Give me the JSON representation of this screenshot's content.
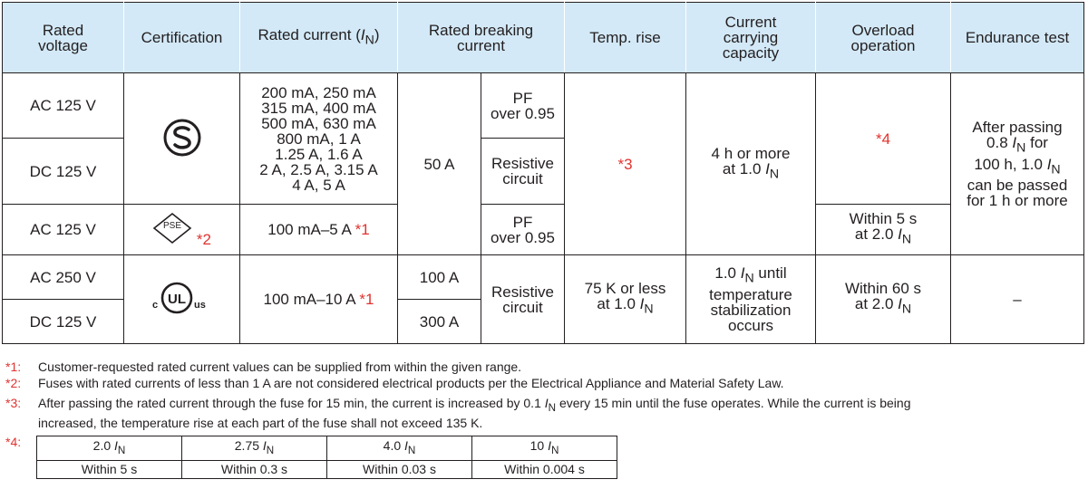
{
  "header": {
    "rated_voltage": "Rated\nvoltage",
    "certification": "Certification",
    "rated_current_prefix": "Rated current (",
    "rated_current_sym": "I",
    "rated_current_sub": "N",
    "rated_current_suffix": ")",
    "rated_breaking": "Rated breaking\ncurrent",
    "temp_rise": "Temp. rise",
    "current_carrying": "Current\ncarrying\ncapacity",
    "overload": "Overload\noperation",
    "endurance": "Endurance test"
  },
  "rows": {
    "r1_voltage": "AC 125 V",
    "r2_voltage": "DC 125 V",
    "r3_voltage": "AC 125 V",
    "r4_voltage": "AC 250 V",
    "r5_voltage": "DC 125 V",
    "current_list": "200 mA, 250 mA\n315 mA, 400 mA\n500 mA, 630 mA\n800 mA, 1 A\n1.25 A, 1.6 A\n2 A, 2.5 A, 3.15 A\n4 A, 5 A",
    "pse_current": "100 mA–5 A",
    "ul_current": "100 mA–10 A",
    "breaking_50": "50 A",
    "breaking_100": "100 A",
    "breaking_300": "300 A",
    "pf_1": "PF\nover 0.95",
    "resistive_1": "Resistive\ncircuit",
    "pf_2": "PF\nover 0.95",
    "resistive_2": "Resistive\ncircuit",
    "temp_ul": "75 K or less\nat 1.0 ",
    "carry_s_pre": "4 h or more\nat 1.0 ",
    "carry_ul_pre": "1.0 ",
    "carry_ul_post": " until\ntemperature\nstabilization\noccurs",
    "overload_pse": "Within 5 s\nat 2.0 ",
    "overload_ul": "Within 60 s\nat 2.0 ",
    "endurance_s_1": "After passing\n0.8 ",
    "endurance_s_2": " for\n100 h, 1.0 ",
    "endurance_s_3": "\ncan be passed\nfor 1 h or more",
    "endurance_ul": "–",
    "sym": "I",
    "sub": "N"
  },
  "refs": {
    "r1": "*1",
    "r2": "*2",
    "r3": "*3",
    "r4": "*4"
  },
  "icons": {
    "s_mark": "s-mark-icon",
    "pse": "pse-diamond-icon",
    "ul": "c-ul-us-icon",
    "pse_letters": "PSE",
    "ul_letters": "UL",
    "ul_c": "c",
    "ul_us": "us"
  },
  "notes": {
    "n1_mark": "*1:",
    "n1": "Customer-requested rated current values can be supplied from within the given range.",
    "n2_mark": "*2:",
    "n2": "Fuses with rated currents of less than 1 A are not considered electrical products per the Electrical Appliance and Material Safety Law.",
    "n3_mark": "*3:",
    "n3_a": "After passing the rated current through the fuse for 15 min, the current is increased by 0.1 ",
    "n3_b": " every 15 min until the fuse operates. While the current is being",
    "n3_c": "increased, the temperature rise at each part of the fuse shall not exceed 135 K.",
    "n4_mark": "*4:"
  },
  "overload_table": {
    "multipliers": [
      "2.0 ",
      "2.75 ",
      "4.0 ",
      "10 "
    ],
    "times": [
      "Within 5 s",
      "Within 0.3 s",
      "Within 0.03 s",
      "Within 0.004 s"
    ]
  },
  "colors": {
    "header_bg": "#d3e9f7",
    "ref_red": "#e0332f",
    "text": "#231f20"
  }
}
